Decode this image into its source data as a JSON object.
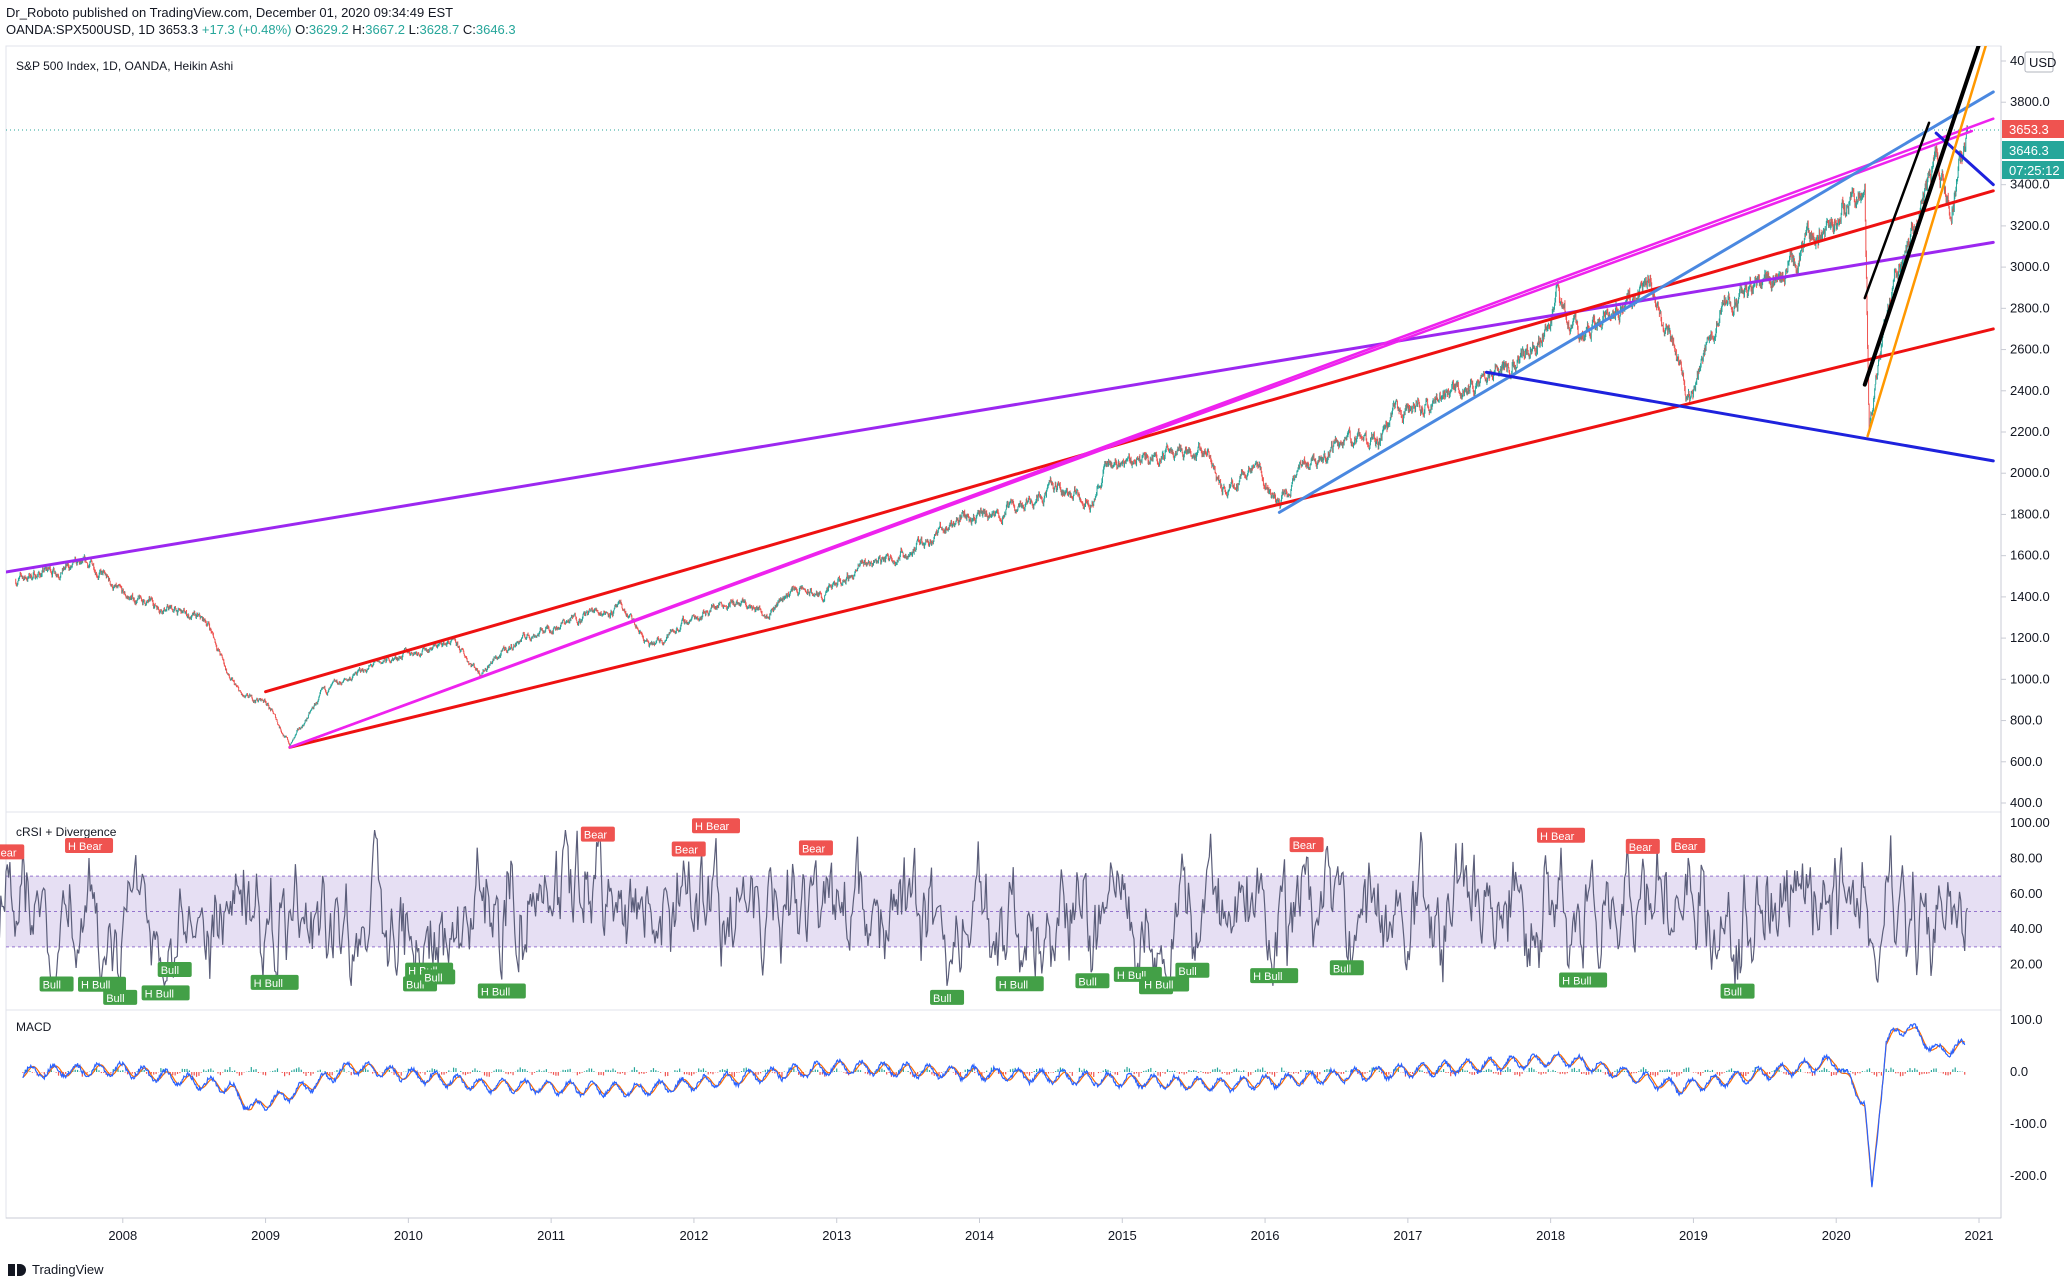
{
  "header": {
    "publisher": "Dr_Roboto",
    "published_text": "published on TradingView.com, December 01, 2020 09:34:49 EST",
    "symbol": "OANDA:SPX500USD, 1D",
    "last": "3653.3",
    "change": "+17.3 (+0.48%)",
    "o_label": "O:",
    "o": "3629.2",
    "h_label": "H:",
    "h": "3667.2",
    "l_label": "L:",
    "l": "3628.7",
    "c_label": "C:",
    "c": "3646.3"
  },
  "main_pane": {
    "title": "S&P 500 Index, 1D, OANDA, Heikin Ashi",
    "currency": "USD",
    "price_tags": [
      {
        "text": "3653.3",
        "color": "#ef5350"
      },
      {
        "text": "3646.3",
        "color": "#26a69a"
      },
      {
        "text": "07:25:12",
        "color": "#26a69a"
      }
    ]
  },
  "rsi_pane": {
    "title": "cRSI + Divergence"
  },
  "macd_pane": {
    "title": "MACD"
  },
  "colors": {
    "up": "#26a69a",
    "down": "#ef5350",
    "purple": "#9c27f0",
    "red": "#ee1111",
    "magenta": "#ee22ee",
    "blue": "#1e22dd",
    "lightblue": "#4a88e0",
    "black": "#000000",
    "orange": "#ff9800",
    "rsi_band": "#d1c4e9",
    "macd_line": "#2962ff",
    "signal_line": "#ff6d00"
  },
  "footer": {
    "brand": "TradingView"
  },
  "chart_data": [
    {
      "type": "line",
      "title": "S&P 500 Index, 1D, OANDA, Heikin Ashi",
      "x_ticks": [
        "2008",
        "2009",
        "2010",
        "2011",
        "2012",
        "2013",
        "2014",
        "2015",
        "2016",
        "2017",
        "2018",
        "2019",
        "2020",
        "2021"
      ],
      "y_ticks": [
        "400.0",
        "600.0",
        "800.0",
        "1000.0",
        "1200.0",
        "1400.0",
        "1600.0",
        "1800.0",
        "2000.0",
        "2200.0",
        "2400.0",
        "2600.0",
        "2800.0",
        "3000.0",
        "3200.0",
        "3400.0",
        "3800.0",
        "4000.0"
      ],
      "ylim": [
        400,
        4000
      ],
      "series": [
        {
          "x": [
            2007.25,
            2007.5,
            2007.8,
            2008.0,
            2008.3,
            2008.6,
            2008.75,
            2008.85,
            2009.0,
            2009.17,
            2009.4,
            2009.7,
            2010.0,
            2010.3,
            2010.5,
            2010.8,
            2011.3,
            2011.5,
            2011.7,
            2011.9,
            2012.2,
            2012.5,
            2012.7,
            2012.9,
            2013.2,
            2013.5,
            2013.9,
            2014.1,
            2014.5,
            2014.8,
            2014.9,
            2015.2,
            2015.4,
            2015.6,
            2015.7,
            2015.9,
            2016.1,
            2016.3,
            2016.6,
            2016.8,
            2016.9,
            2017.2,
            2017.6,
            2017.9,
            2018.05,
            2018.2,
            2018.5,
            2018.7,
            2018.98,
            2019.2,
            2019.4,
            2019.6,
            2019.9,
            2020.1,
            2020.2,
            2020.23,
            2020.4,
            2020.6,
            2020.7,
            2020.8,
            2020.92
          ],
          "y": [
            1480,
            1530,
            1550,
            1400,
            1350,
            1270,
            1000,
            900,
            900,
            680,
            930,
            1050,
            1130,
            1180,
            1040,
            1200,
            1330,
            1340,
            1150,
            1260,
            1380,
            1330,
            1440,
            1400,
            1560,
            1620,
            1800,
            1780,
            1930,
            1880,
            2050,
            2080,
            2120,
            2100,
            1900,
            2050,
            1850,
            2060,
            2170,
            2130,
            2270,
            2360,
            2470,
            2650,
            2850,
            2650,
            2800,
            2920,
            2350,
            2830,
            2900,
            2950,
            3150,
            3350,
            3350,
            2250,
            2950,
            3300,
            3500,
            3300,
            3653
          ]
        }
      ]
    },
    {
      "type": "line",
      "title": "cRSI + Divergence",
      "y_ticks": [
        "20.00",
        "40.00",
        "60.00",
        "80.00",
        "100.00"
      ],
      "ylim": [
        0,
        100
      ],
      "band": [
        30,
        70
      ],
      "labels": [
        "Bear",
        "H Bear",
        "Bull",
        "H Bull"
      ]
    },
    {
      "type": "line",
      "title": "MACD",
      "y_ticks": [
        "-200.0",
        "-100.0",
        "0.0",
        "100.0"
      ],
      "ylim": [
        -250,
        100
      ],
      "series": [
        {
          "x": [
            2007.3,
            2008.0,
            2008.75,
            2008.9,
            2009.2,
            2009.6,
            2010.5,
            2011.6,
            2013.0,
            2015.7,
            2018.1,
            2018.9,
            2020.0,
            2020.2,
            2020.25,
            2020.35,
            2020.5,
            2020.7,
            2020.9
          ],
          "y": [
            0,
            5,
            -30,
            -70,
            -40,
            10,
            -25,
            -35,
            10,
            -25,
            25,
            -30,
            20,
            -60,
            -230,
            60,
            90,
            40,
            50
          ]
        }
      ]
    }
  ]
}
